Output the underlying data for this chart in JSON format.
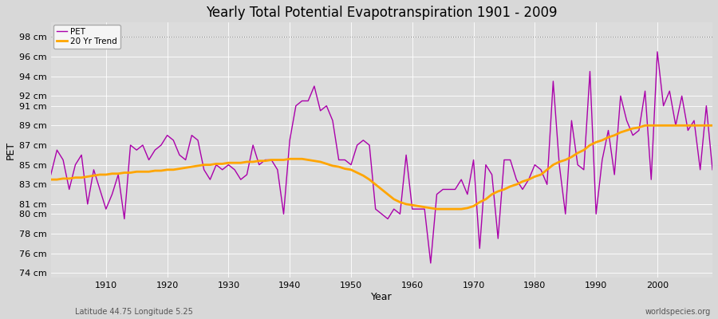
{
  "title": "Yearly Total Potential Evapotranspiration 1901 - 2009",
  "ylabel": "PET",
  "xlabel": "Year",
  "footnote_left": "Latitude 44.75 Longitude 5.25",
  "footnote_right": "worldspecies.org",
  "pet_color": "#AA00AA",
  "trend_color": "#FFA500",
  "fig_bg_color": "#D8D8D8",
  "plot_bg_color": "#DCDCDC",
  "grid_color": "#FFFFFF",
  "dotted_line_color": "#888888",
  "ylim": [
    73.5,
    99.5
  ],
  "yticks": [
    74,
    76,
    78,
    80,
    81,
    83,
    85,
    87,
    89,
    91,
    92,
    94,
    96,
    98
  ],
  "xlim": [
    1901,
    2009
  ],
  "xticks": [
    1910,
    1920,
    1930,
    1940,
    1950,
    1960,
    1970,
    1980,
    1990,
    2000
  ],
  "years": [
    1901,
    1902,
    1903,
    1904,
    1905,
    1906,
    1907,
    1908,
    1909,
    1910,
    1911,
    1912,
    1913,
    1914,
    1915,
    1916,
    1917,
    1918,
    1919,
    1920,
    1921,
    1922,
    1923,
    1924,
    1925,
    1926,
    1927,
    1928,
    1929,
    1930,
    1931,
    1932,
    1933,
    1934,
    1935,
    1936,
    1937,
    1938,
    1939,
    1940,
    1941,
    1942,
    1943,
    1944,
    1945,
    1946,
    1947,
    1948,
    1949,
    1950,
    1951,
    1952,
    1953,
    1954,
    1955,
    1956,
    1957,
    1958,
    1959,
    1960,
    1961,
    1962,
    1963,
    1964,
    1965,
    1966,
    1967,
    1968,
    1969,
    1970,
    1971,
    1972,
    1973,
    1974,
    1975,
    1976,
    1977,
    1978,
    1979,
    1980,
    1981,
    1982,
    1983,
    1984,
    1985,
    1986,
    1987,
    1988,
    1989,
    1990,
    1991,
    1992,
    1993,
    1994,
    1995,
    1996,
    1997,
    1998,
    1999,
    2000,
    2001,
    2002,
    2003,
    2004,
    2005,
    2006,
    2007,
    2008,
    2009
  ],
  "pet_values": [
    84.0,
    86.5,
    85.5,
    82.5,
    85.0,
    86.0,
    81.0,
    84.5,
    82.5,
    80.5,
    82.0,
    84.0,
    79.5,
    87.0,
    86.5,
    87.0,
    85.5,
    86.5,
    87.0,
    88.0,
    87.5,
    86.0,
    85.5,
    88.0,
    87.5,
    84.5,
    83.5,
    85.0,
    84.5,
    85.0,
    84.5,
    83.5,
    84.0,
    87.0,
    85.0,
    85.5,
    85.5,
    84.5,
    80.0,
    87.5,
    91.0,
    91.5,
    91.5,
    93.0,
    90.5,
    91.0,
    89.5,
    85.5,
    85.5,
    85.0,
    87.0,
    87.5,
    87.0,
    80.5,
    80.0,
    79.5,
    80.5,
    80.0,
    86.0,
    80.5,
    80.5,
    80.5,
    75.0,
    82.0,
    82.5,
    82.5,
    82.5,
    83.5,
    82.0,
    85.5,
    76.5,
    85.0,
    84.0,
    77.5,
    85.5,
    85.5,
    83.5,
    82.5,
    83.5,
    85.0,
    84.5,
    83.0,
    93.5,
    85.0,
    80.0,
    89.5,
    85.0,
    84.5,
    94.5,
    80.0,
    85.5,
    88.5,
    84.0,
    92.0,
    89.5,
    88.0,
    88.5,
    92.5,
    83.5,
    96.5,
    91.0,
    92.5,
    89.0,
    92.0,
    88.5,
    89.5,
    84.5,
    91.0,
    84.5
  ],
  "trend_values": [
    83.5,
    83.5,
    83.6,
    83.6,
    83.7,
    83.7,
    83.8,
    83.9,
    84.0,
    84.0,
    84.1,
    84.1,
    84.2,
    84.2,
    84.3,
    84.3,
    84.3,
    84.4,
    84.4,
    84.5,
    84.5,
    84.6,
    84.7,
    84.8,
    84.9,
    85.0,
    85.0,
    85.1,
    85.1,
    85.2,
    85.2,
    85.2,
    85.3,
    85.3,
    85.4,
    85.4,
    85.5,
    85.5,
    85.5,
    85.6,
    85.6,
    85.6,
    85.5,
    85.4,
    85.3,
    85.1,
    84.9,
    84.8,
    84.6,
    84.5,
    84.2,
    83.9,
    83.5,
    83.0,
    82.5,
    82.0,
    81.5,
    81.2,
    81.0,
    80.9,
    80.8,
    80.7,
    80.6,
    80.5,
    80.5,
    80.5,
    80.5,
    80.5,
    80.6,
    80.8,
    81.2,
    81.5,
    82.0,
    82.3,
    82.5,
    82.8,
    83.0,
    83.3,
    83.5,
    83.8,
    84.0,
    84.5,
    85.0,
    85.3,
    85.5,
    85.8,
    86.2,
    86.5,
    87.0,
    87.3,
    87.5,
    87.8,
    88.0,
    88.3,
    88.5,
    88.7,
    88.8,
    89.0,
    89.0,
    89.0,
    89.0,
    89.0,
    89.0,
    89.0,
    89.0,
    89.0,
    89.0,
    89.0,
    89.0
  ]
}
